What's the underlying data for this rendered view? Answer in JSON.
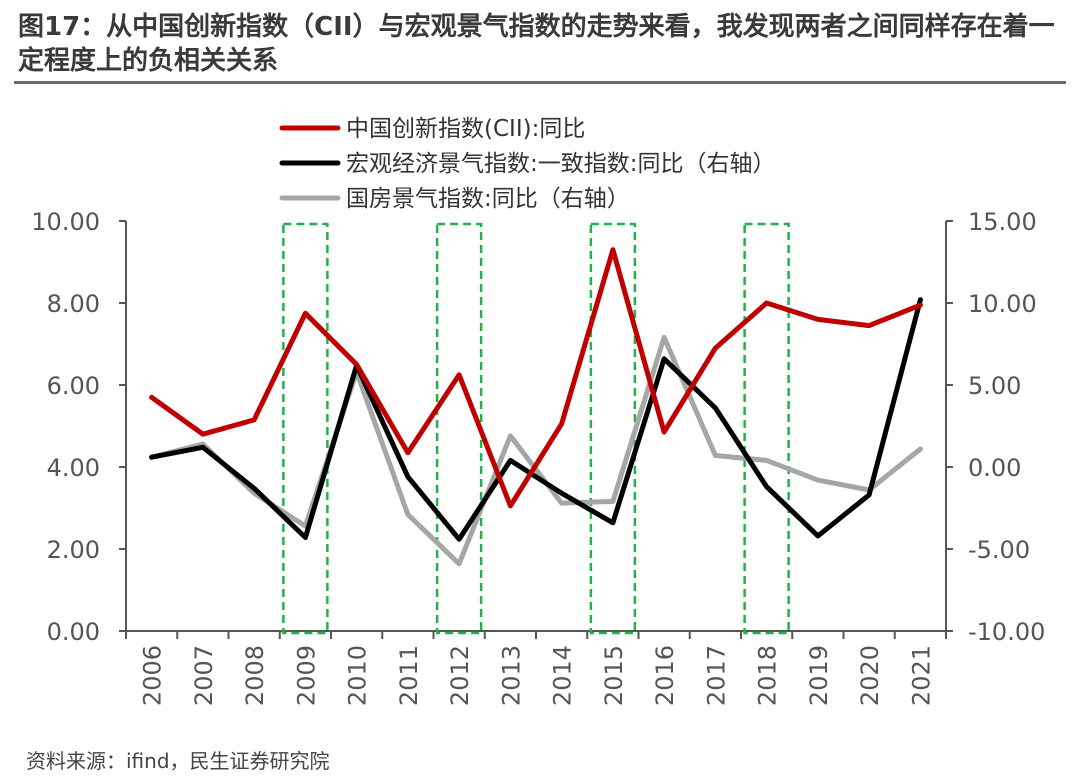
{
  "title": "图17：从中国创新指数（CII）与宏观景气指数的走势来看，我发现两者之间同样存在着一定程度上的负相关关系",
  "source": "资料来源：ifind，民生证券研究院",
  "colors": {
    "cii": "#c00000",
    "macro": "#000000",
    "housing": "#a6a6a6",
    "highlight": "#22b14c"
  },
  "chart_data": {
    "type": "line",
    "categories": [
      "2006",
      "2007",
      "2008",
      "2009",
      "2010",
      "2011",
      "2012",
      "2013",
      "2014",
      "2015",
      "2016",
      "2017",
      "2018",
      "2019",
      "2020",
      "2021"
    ],
    "y_left": {
      "range": [
        0,
        10
      ],
      "ticks": [
        "0.00",
        "2.00",
        "4.00",
        "6.00",
        "8.00",
        "10.00"
      ]
    },
    "y_right": {
      "range": [
        -10,
        15
      ],
      "ticks": [
        "-10.00",
        "-5.00",
        "0.00",
        "5.00",
        "10.00",
        "15.00"
      ]
    },
    "series": [
      {
        "name": "中国创新指数(CII):同比",
        "axis": "left",
        "color": "#c00000",
        "values": [
          5.7,
          4.8,
          5.15,
          7.75,
          6.5,
          4.35,
          6.25,
          3.05,
          5.05,
          9.3,
          4.85,
          6.9,
          8.0,
          7.6,
          7.45,
          7.95
        ]
      },
      {
        "name": "宏观经济景气指数:一致指数:同比（右轴）",
        "axis": "right",
        "color": "#000000",
        "values": [
          0.6,
          1.2,
          -1.3,
          -4.3,
          6.2,
          -0.6,
          -4.4,
          0.4,
          -1.6,
          -3.4,
          6.6,
          3.6,
          -1.2,
          -4.2,
          -1.7,
          10.2
        ]
      },
      {
        "name": "国房景气指数:同比（右轴）",
        "axis": "right",
        "color": "#a6a6a6",
        "values": [
          0.6,
          1.4,
          -1.6,
          -3.6,
          5.8,
          -2.9,
          -5.9,
          1.9,
          -2.2,
          -2.1,
          7.9,
          0.7,
          0.4,
          -0.8,
          -1.4,
          1.1
        ]
      }
    ],
    "highlighted_years": [
      "2009",
      "2012",
      "2015",
      "2018"
    ],
    "legend_position": "top"
  }
}
